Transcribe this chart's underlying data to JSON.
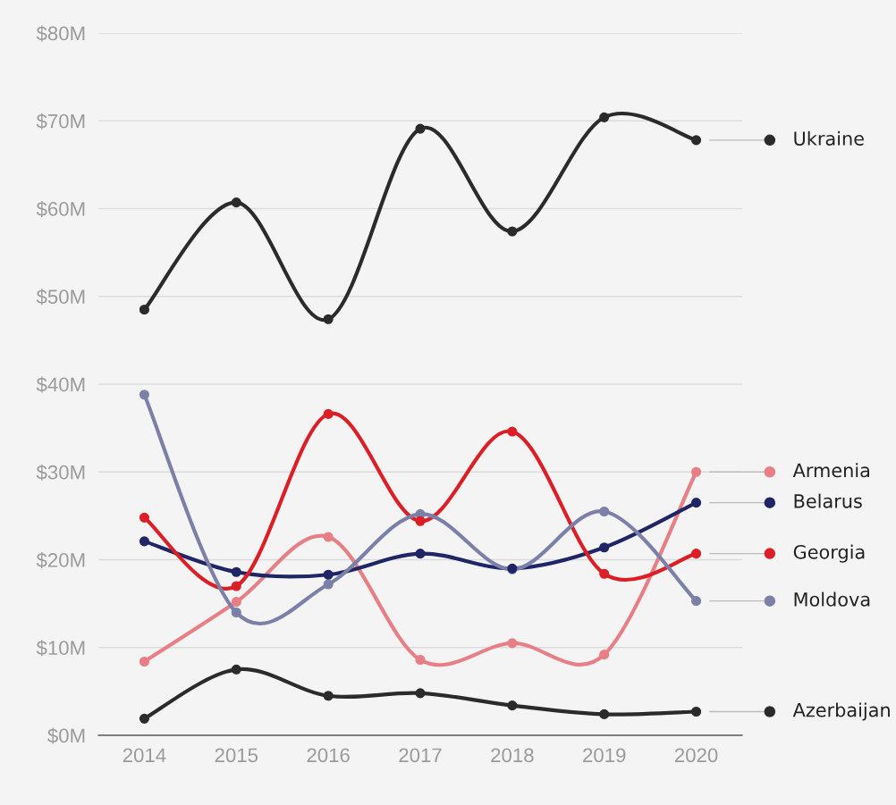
{
  "chart_data": {
    "type": "line",
    "categories": [
      "2014",
      "2015",
      "2016",
      "2017",
      "2018",
      "2019",
      "2020"
    ],
    "series": [
      {
        "name": "Ukraine",
        "color": "#2b2b2b",
        "values": [
          48.5,
          60.7,
          47.4,
          69.1,
          57.4,
          70.4,
          67.8
        ]
      },
      {
        "name": "Armenia",
        "color": "#e87f86",
        "values": [
          8.4,
          15.2,
          22.6,
          8.6,
          10.5,
          9.2,
          30.0
        ]
      },
      {
        "name": "Belarus",
        "color": "#1f2566",
        "values": [
          22.1,
          18.6,
          18.3,
          20.7,
          19.0,
          21.4,
          26.5
        ]
      },
      {
        "name": "Georgia",
        "color": "#dc1f26",
        "values": [
          24.8,
          17.0,
          36.6,
          24.4,
          34.6,
          18.4,
          20.7
        ]
      },
      {
        "name": "Moldova",
        "color": "#7c80a8",
        "values": [
          38.8,
          14.0,
          17.2,
          25.2,
          18.9,
          25.5,
          15.3
        ]
      },
      {
        "name": "Azerbaijan",
        "color": "#2b2b2b",
        "values": [
          1.9,
          7.5,
          4.5,
          4.8,
          3.4,
          2.4,
          2.7
        ]
      }
    ],
    "ylim": [
      0,
      80
    ],
    "yticks": [
      {
        "value": 0,
        "label": "$0M"
      },
      {
        "value": 10,
        "label": "$10M"
      },
      {
        "value": 20,
        "label": "$20M"
      },
      {
        "value": 30,
        "label": "$30M"
      },
      {
        "value": 40,
        "label": "$40M"
      },
      {
        "value": 50,
        "label": "$50M"
      },
      {
        "value": 60,
        "label": "$60M"
      },
      {
        "value": 70,
        "label": "$70M"
      },
      {
        "value": 80,
        "label": "$80M"
      }
    ],
    "grid": "y",
    "legend": "right",
    "marker": "circle",
    "line_style": "solid"
  }
}
